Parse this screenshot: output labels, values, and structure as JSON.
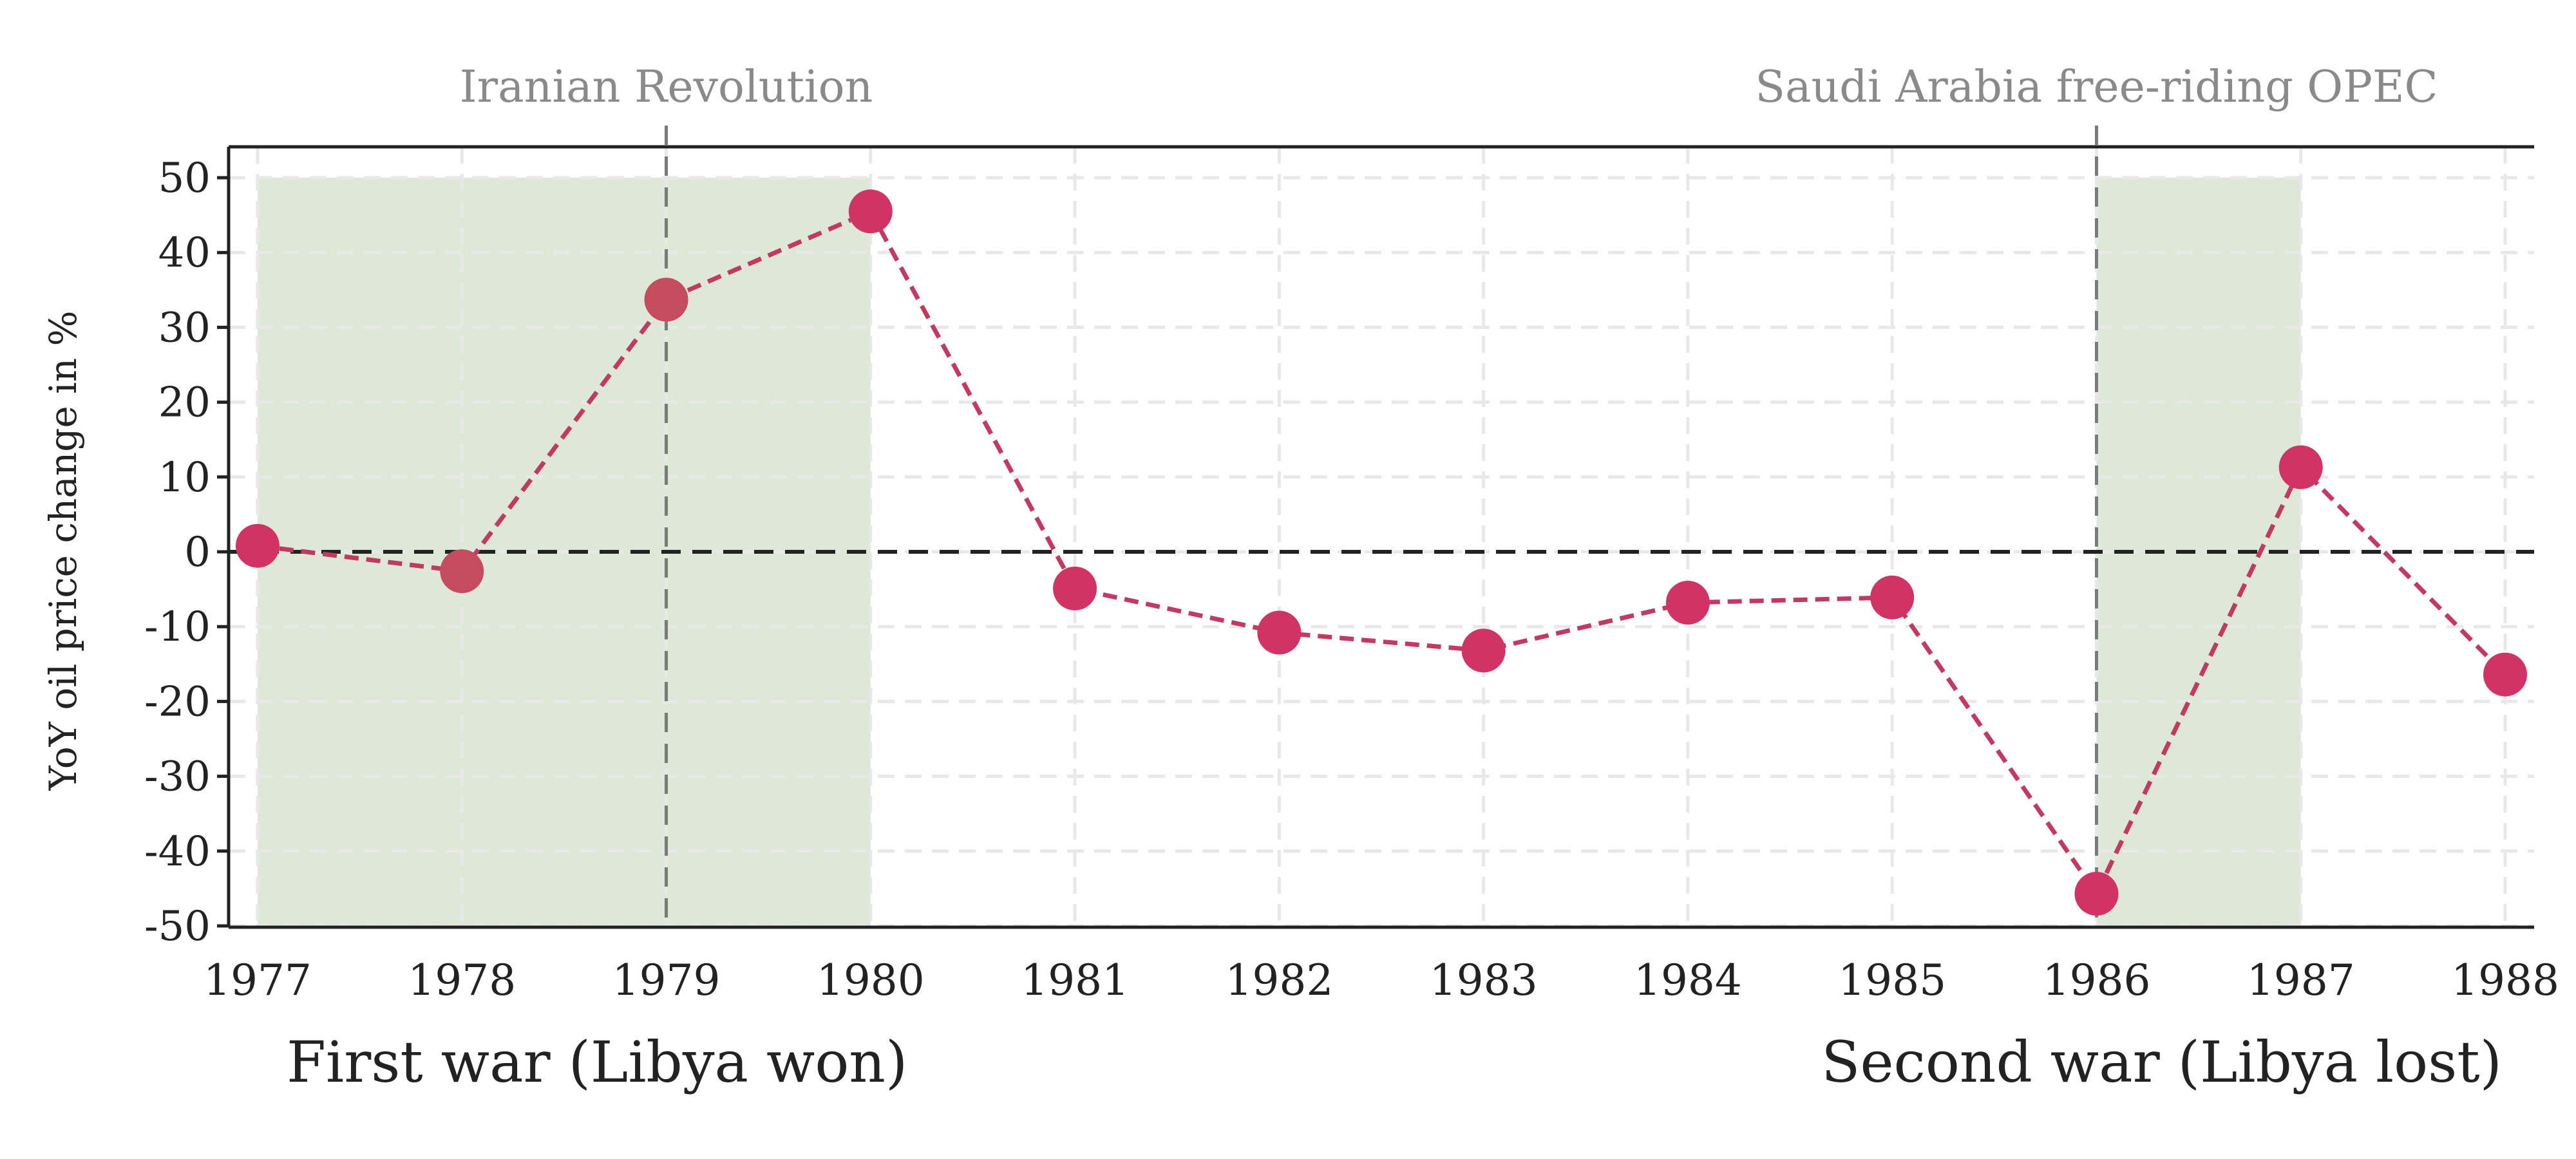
{
  "chart_data": {
    "type": "line",
    "ylabel": "YoY oil price change in %",
    "xlabel": "",
    "xlim": [
      1977,
      1988
    ],
    "ylim": [
      -50,
      50
    ],
    "x": [
      1977,
      1978,
      1979,
      1980,
      1981,
      1982,
      1983,
      1984,
      1985,
      1986,
      1987,
      1988
    ],
    "x_ticks": [
      "1977",
      "1978",
      "1979",
      "1980",
      "1981",
      "1982",
      "1983",
      "1984",
      "1985",
      "1986",
      "1987",
      "1988"
    ],
    "y_ticks": [
      50,
      40,
      30,
      20,
      10,
      0,
      -10,
      -20,
      -30,
      -40,
      -50
    ],
    "series": [
      {
        "values": [
          0.8,
          -2.6,
          33.7,
          45.5,
          -4.9,
          -10.8,
          -13.2,
          -6.8,
          -6.1,
          -45.7,
          11.3,
          -16.4
        ],
        "point_colors": [
          "#d03366",
          "#c54c5e",
          "#c54c5e",
          "#d03366",
          "#d03366",
          "#d03366",
          "#d03366",
          "#d03366",
          "#d03366",
          "#d03366",
          "#d03366",
          "#d03366"
        ],
        "line_color": "#c23a62",
        "line_style": "dashed"
      }
    ],
    "shaded_periods": [
      {
        "from": 1977,
        "to": 1980,
        "label": "First war (Libya won)",
        "label_align": "left"
      },
      {
        "from": 1986,
        "to": 1987,
        "label": "Second war (Libya lost)",
        "label_align": "right"
      }
    ],
    "vertical_lines": [
      {
        "x": 1979,
        "label": "Iranian Revolution"
      },
      {
        "x": 1986,
        "label": "Saudi Arabia free-riding OPEC"
      }
    ],
    "reference_line": {
      "y": 0,
      "style": "dashed"
    },
    "grid": true,
    "legend": "none",
    "colors": {
      "shade": "#dde8d6",
      "event_line": "#7a7a7a",
      "event_label": "#8a8a8a",
      "grid": "#e8e8e8",
      "axis": "#222222"
    }
  }
}
